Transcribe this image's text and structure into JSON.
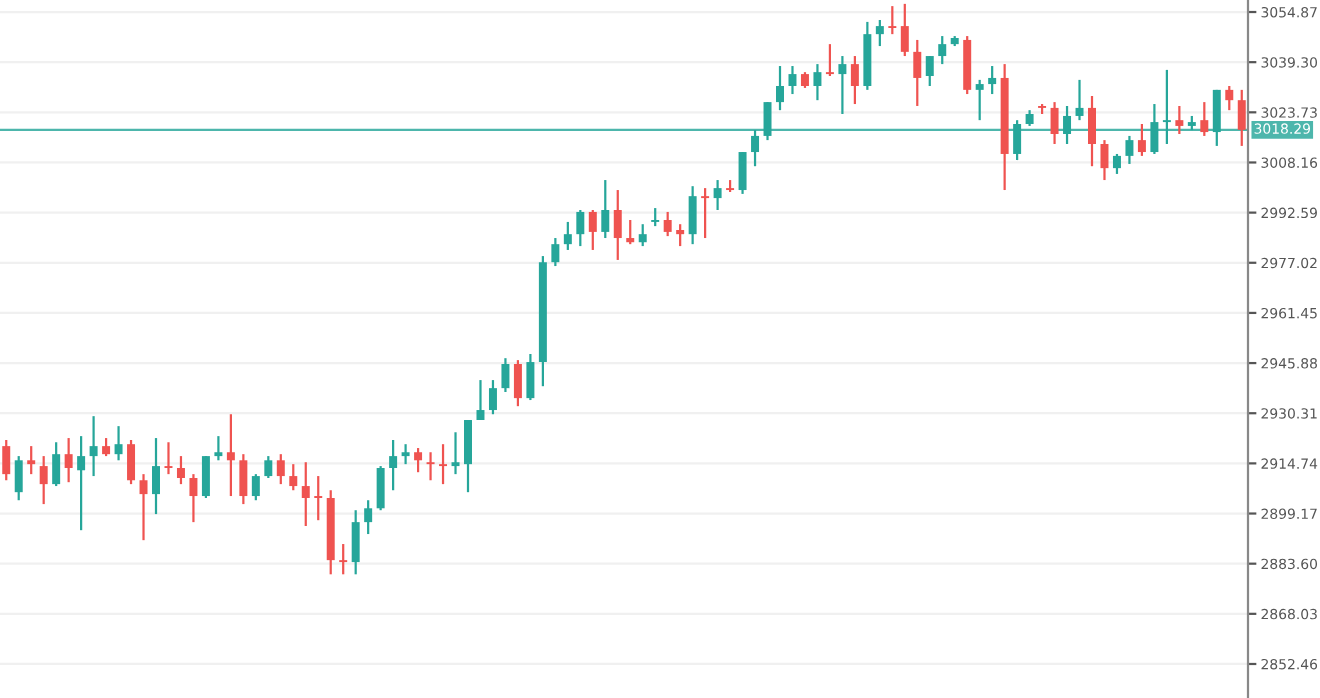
{
  "chart_data": {
    "type": "candlestick",
    "categories": [
      null,
      null,
      null,
      null,
      null,
      null,
      null,
      null,
      null,
      null,
      null,
      null,
      null,
      null,
      null,
      null,
      null,
      null,
      null,
      null,
      null,
      null,
      null,
      null,
      null,
      null,
      null,
      null,
      null,
      null,
      null,
      null,
      null,
      null,
      null,
      null,
      null,
      null,
      null,
      null,
      null,
      null,
      null,
      null,
      null,
      null,
      null,
      null,
      null,
      null,
      null,
      null,
      null,
      null,
      null,
      null,
      null,
      null,
      null,
      null,
      null,
      null,
      null,
      null,
      null,
      null,
      null,
      null,
      null,
      null,
      null,
      null,
      null,
      null,
      null,
      null,
      null,
      null,
      null,
      null,
      null,
      null,
      null,
      null,
      null,
      null,
      null,
      null,
      null,
      null,
      null,
      null,
      null,
      null,
      null,
      null,
      null,
      null,
      null,
      null
    ],
    "ohlc": [
      [
        2920.1,
        2922.0,
        2909.5,
        2911.4
      ],
      [
        2905.8,
        2917.0,
        2903.3,
        2915.7
      ],
      [
        2915.7,
        2920.1,
        2911.4,
        2914.5
      ],
      [
        2913.9,
        2917.0,
        2902.1,
        2908.3
      ],
      [
        2908.3,
        2921.3,
        2907.7,
        2917.6
      ],
      [
        2917.6,
        2922.6,
        2908.9,
        2913.3
      ],
      [
        2912.6,
        2923.2,
        2894.0,
        2917.0
      ],
      [
        2917.0,
        2929.4,
        2910.8,
        2920.1
      ],
      [
        2920.1,
        2922.6,
        2917.0,
        2917.6
      ],
      [
        2917.6,
        2926.3,
        2915.7,
        2920.7
      ],
      [
        2920.7,
        2922.0,
        2908.3,
        2909.5
      ],
      [
        2909.5,
        2911.4,
        2890.9,
        2905.2
      ],
      [
        2905.2,
        2922.6,
        2899.0,
        2913.9
      ],
      [
        2913.9,
        2921.3,
        2911.4,
        2913.3
      ],
      [
        2913.3,
        2917.0,
        2908.3,
        2910.2
      ],
      [
        2910.2,
        2911.4,
        2896.5,
        2904.6
      ],
      [
        2904.6,
        2917.0,
        2904.0,
        2917.0
      ],
      [
        2917.0,
        2923.2,
        2915.7,
        2918.2
      ],
      [
        2918.2,
        2930.0,
        2904.6,
        2915.7
      ],
      [
        2915.7,
        2917.6,
        2902.1,
        2904.6
      ],
      [
        2904.6,
        2911.4,
        2903.3,
        2910.8
      ],
      [
        2910.8,
        2917.0,
        2910.2,
        2915.7
      ],
      [
        2915.7,
        2917.6,
        2908.3,
        2910.8
      ],
      [
        2910.8,
        2914.5,
        2906.4,
        2907.7
      ],
      [
        2907.7,
        2915.1,
        2895.3,
        2904.0
      ],
      [
        2904.6,
        2910.8,
        2897.1,
        2904.0
      ],
      [
        2904.0,
        2906.4,
        2880.3,
        2884.7
      ],
      [
        2884.7,
        2889.7,
        2880.3,
        2884.1
      ],
      [
        2884.1,
        2900.2,
        2880.3,
        2896.5
      ],
      [
        2896.5,
        2903.3,
        2892.8,
        2900.8
      ],
      [
        2900.8,
        2913.9,
        2900.2,
        2913.3
      ],
      [
        2913.3,
        2922.0,
        2906.4,
        2917.0
      ],
      [
        2917.0,
        2920.7,
        2914.5,
        2918.2
      ],
      [
        2918.2,
        2919.5,
        2912.0,
        2915.7
      ],
      [
        2915.1,
        2918.2,
        2909.5,
        2914.5
      ],
      [
        2914.5,
        2920.7,
        2908.3,
        2913.9
      ],
      [
        2913.9,
        2924.4,
        2911.4,
        2915.1
      ],
      [
        2914.5,
        2928.2,
        2905.8,
        2928.2
      ],
      [
        2928.2,
        2940.6,
        2928.2,
        2931.3
      ],
      [
        2931.3,
        2940.6,
        2930.0,
        2938.1
      ],
      [
        2938.1,
        2947.4,
        2936.9,
        2945.6
      ],
      [
        2945.6,
        2946.8,
        2932.5,
        2935.0
      ],
      [
        2935.0,
        2948.7,
        2934.4,
        2946.2
      ],
      [
        2946.2,
        2979.1,
        2938.7,
        2977.2
      ],
      [
        2977.2,
        2984.7,
        2976.0,
        2982.8
      ],
      [
        2982.8,
        2989.7,
        2981.0,
        2985.9
      ],
      [
        2985.9,
        2993.4,
        2982.2,
        2992.8
      ],
      [
        2992.8,
        2993.4,
        2981.0,
        2986.6
      ],
      [
        2986.6,
        3002.7,
        2984.7,
        2993.4
      ],
      [
        2993.4,
        2999.6,
        2977.9,
        2984.7
      ],
      [
        2984.7,
        2990.3,
        2982.8,
        2983.4
      ],
      [
        2983.4,
        2989.0,
        2982.2,
        2985.9
      ],
      [
        2989.7,
        2994.0,
        2988.4,
        2990.3
      ],
      [
        2990.3,
        2992.8,
        2985.3,
        2986.6
      ],
      [
        2987.2,
        2989.0,
        2982.2,
        2985.9
      ],
      [
        2985.9,
        3000.8,
        2982.8,
        2997.7
      ],
      [
        2997.7,
        3000.2,
        2984.7,
        2997.1
      ],
      [
        2997.1,
        3002.7,
        2993.4,
        3000.2
      ],
      [
        3000.2,
        3002.7,
        2999.0,
        2999.6
      ],
      [
        2999.6,
        3011.4,
        2998.4,
        3011.4
      ],
      [
        3011.4,
        3018.2,
        3007.0,
        3016.4
      ],
      [
        3016.4,
        3026.9,
        3015.1,
        3026.9
      ],
      [
        3026.9,
        3038.1,
        3024.4,
        3031.9
      ],
      [
        3031.9,
        3038.1,
        3029.4,
        3035.6
      ],
      [
        3035.6,
        3036.2,
        3031.3,
        3031.9
      ],
      [
        3031.9,
        3038.7,
        3027.5,
        3036.2
      ],
      [
        3036.2,
        3044.9,
        3035.0,
        3035.6
      ],
      [
        3035.6,
        3041.2,
        3023.2,
        3038.7
      ],
      [
        3038.7,
        3041.2,
        3026.3,
        3031.9
      ],
      [
        3031.9,
        3051.8,
        3030.7,
        3048.0
      ],
      [
        3048.0,
        3052.4,
        3044.3,
        3050.5
      ],
      [
        3050.5,
        3056.7,
        3048.0,
        3049.9
      ],
      [
        3050.5,
        3057.4,
        3041.2,
        3042.5
      ],
      [
        3042.5,
        3046.2,
        3025.7,
        3034.4
      ],
      [
        3035.0,
        3041.2,
        3031.9,
        3041.2
      ],
      [
        3041.2,
        3047.4,
        3038.7,
        3044.9
      ],
      [
        3044.9,
        3047.4,
        3044.3,
        3046.8
      ],
      [
        3046.2,
        3047.4,
        3029.4,
        3030.7
      ],
      [
        3030.7,
        3033.8,
        3021.3,
        3032.5
      ],
      [
        3032.5,
        3038.1,
        3029.4,
        3034.4
      ],
      [
        3034.4,
        3038.7,
        2999.6,
        3010.8
      ],
      [
        3010.8,
        3021.3,
        3008.9,
        3020.1
      ],
      [
        3020.1,
        3024.4,
        3019.5,
        3023.2
      ],
      [
        3025.7,
        3026.3,
        3023.2,
        3025.1
      ],
      [
        3025.1,
        3026.9,
        3013.9,
        3017.0
      ],
      [
        3017.0,
        3025.7,
        3013.9,
        3022.6
      ],
      [
        3022.6,
        3033.8,
        3021.3,
        3025.1
      ],
      [
        3025.1,
        3028.8,
        3007.0,
        3013.9
      ],
      [
        3013.9,
        3015.1,
        3002.7,
        3006.4
      ],
      [
        3006.4,
        3010.8,
        3004.6,
        3010.2
      ],
      [
        3010.2,
        3016.4,
        3007.7,
        3015.1
      ],
      [
        3015.1,
        3020.1,
        3010.2,
        3011.4
      ],
      [
        3011.4,
        3026.3,
        3010.8,
        3020.7
      ],
      [
        3020.7,
        3036.9,
        3013.9,
        3021.3
      ],
      [
        3021.3,
        3025.7,
        3017.0,
        3019.5
      ],
      [
        3019.5,
        3022.6,
        3018.2,
        3020.7
      ],
      [
        3021.3,
        3026.9,
        3016.4,
        3017.6
      ],
      [
        3017.6,
        3030.7,
        3013.3,
        3030.7
      ],
      [
        3030.7,
        3031.9,
        3024.4,
        3027.5
      ],
      [
        3027.5,
        3030.7,
        3013.3,
        3018.29
      ]
    ],
    "colors": [
      "#ef5350",
      "#26a69a",
      "#ef5350",
      "#ef5350",
      "#26a69a",
      "#ef5350",
      "#26a69a",
      "#26a69a",
      "#ef5350",
      "#26a69a",
      "#ef5350",
      "#ef5350",
      "#26a69a",
      "#ef5350",
      "#ef5350",
      "#ef5350",
      "#26a69a",
      "#26a69a",
      "#ef5350",
      "#ef5350",
      "#26a69a",
      "#26a69a",
      "#ef5350",
      "#ef5350",
      "#ef5350",
      "#ef5350",
      "#ef5350",
      "#ef5350",
      "#26a69a",
      "#26a69a",
      "#26a69a",
      "#26a69a",
      "#26a69a",
      "#ef5350",
      "#ef5350",
      "#ef5350",
      "#26a69a",
      "#26a69a",
      "#26a69a",
      "#26a69a",
      "#26a69a",
      "#ef5350",
      "#26a69a",
      "#26a69a",
      "#26a69a",
      "#26a69a",
      "#26a69a",
      "#ef5350",
      "#26a69a",
      "#ef5350",
      "#ef5350",
      "#26a69a",
      "#26a69a",
      "#ef5350",
      "#ef5350",
      "#26a69a",
      "#ef5350",
      "#26a69a",
      "#ef5350",
      "#26a69a",
      "#26a69a",
      "#26a69a",
      "#26a69a",
      "#26a69a",
      "#ef5350",
      "#26a69a",
      "#ef5350",
      "#26a69a",
      "#ef5350",
      "#26a69a",
      "#26a69a",
      "#ef5350",
      "#ef5350",
      "#ef5350",
      "#26a69a",
      "#26a69a",
      "#26a69a",
      "#ef5350",
      "#26a69a",
      "#26a69a",
      "#ef5350",
      "#26a69a",
      "#26a69a",
      "#ef5350",
      "#ef5350",
      "#26a69a",
      "#26a69a",
      "#ef5350",
      "#ef5350",
      "#26a69a",
      "#26a69a",
      "#ef5350",
      "#26a69a",
      "#26a69a",
      "#ef5350",
      "#26a69a",
      "#ef5350",
      "#26a69a",
      "#ef5350",
      "#ef5350"
    ],
    "ylim": [
      2841.9,
      3058.6
    ],
    "yticks": [
      {
        "value": 3054.87,
        "label": "3054.87"
      },
      {
        "value": 3039.3,
        "label": "3039.30"
      },
      {
        "value": 3023.73,
        "label": "3023.73"
      },
      {
        "value": 3008.16,
        "label": "3008.16"
      },
      {
        "value": 2992.59,
        "label": "2992.59"
      },
      {
        "value": 2977.02,
        "label": "2977.02"
      },
      {
        "value": 2961.45,
        "label": "2961.45"
      },
      {
        "value": 2945.88,
        "label": "2945.88"
      },
      {
        "value": 2930.31,
        "label": "2930.31"
      },
      {
        "value": 2914.74,
        "label": "2914.74"
      },
      {
        "value": 2899.17,
        "label": "2899.17"
      },
      {
        "value": 2883.6,
        "label": "2883.60"
      },
      {
        "value": 2868.03,
        "label": "2868.03"
      },
      {
        "value": 2852.46,
        "label": "2852.46"
      }
    ],
    "ref_lines": [
      {
        "axis": "y",
        "value": 3018.29,
        "label": "3018.29",
        "color": "#4db6ac"
      }
    ],
    "grid": "y",
    "tick_labels": "y"
  }
}
